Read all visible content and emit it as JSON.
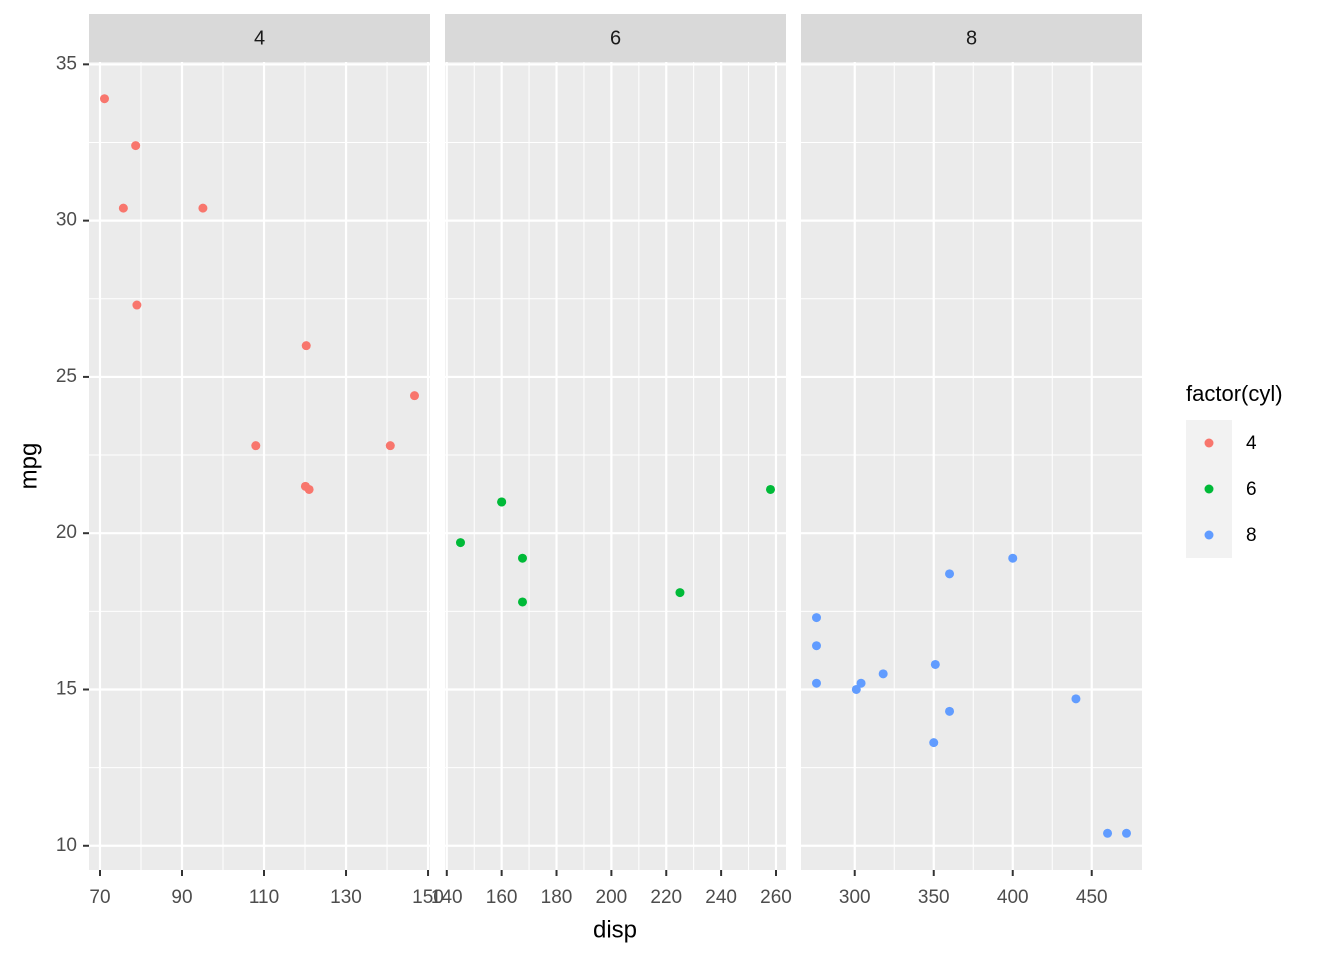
{
  "chart_data": {
    "type": "scatter",
    "xlabel": "disp",
    "ylabel": "mpg",
    "legend_title": "factor(cyl)",
    "legend_position": "right",
    "grid": true,
    "ylim": [
      9.225,
      35.075
    ],
    "yticks": [
      10,
      15,
      20,
      25,
      30,
      35
    ],
    "facets": [
      {
        "label": "4",
        "color": "#F8766D",
        "x": [
          108,
          146.7,
          140.8,
          78.7,
          75.7,
          71.1,
          120.1,
          79,
          120.3,
          95.1,
          121
        ],
        "y": [
          22.8,
          24.4,
          22.8,
          32.4,
          30.4,
          33.9,
          21.5,
          27.3,
          26.0,
          30.4,
          21.4
        ],
        "xlim": [
          67.32,
          150.48
        ],
        "xticks": [
          70,
          90,
          110,
          130,
          150
        ]
      },
      {
        "label": "6",
        "color": "#00BA38",
        "x": [
          160,
          160,
          258,
          225,
          167.6,
          167.6,
          145
        ],
        "y": [
          21.0,
          21.0,
          21.4,
          18.1,
          19.2,
          17.8,
          19.7
        ],
        "xlim": [
          139.35,
          263.65
        ],
        "xticks": [
          140,
          160,
          180,
          200,
          220,
          240,
          260
        ]
      },
      {
        "label": "8",
        "color": "#619CFF",
        "x": [
          360,
          360,
          275.8,
          275.8,
          275.8,
          472,
          460,
          440,
          318,
          304,
          350,
          400,
          351,
          301
        ],
        "y": [
          18.7,
          14.3,
          16.4,
          17.3,
          15.2,
          10.4,
          10.4,
          14.7,
          15.5,
          15.2,
          13.3,
          19.2,
          15.8,
          15.0
        ],
        "xlim": [
          265.99,
          481.81
        ],
        "xticks": [
          300,
          350,
          400,
          450
        ]
      }
    ]
  }
}
